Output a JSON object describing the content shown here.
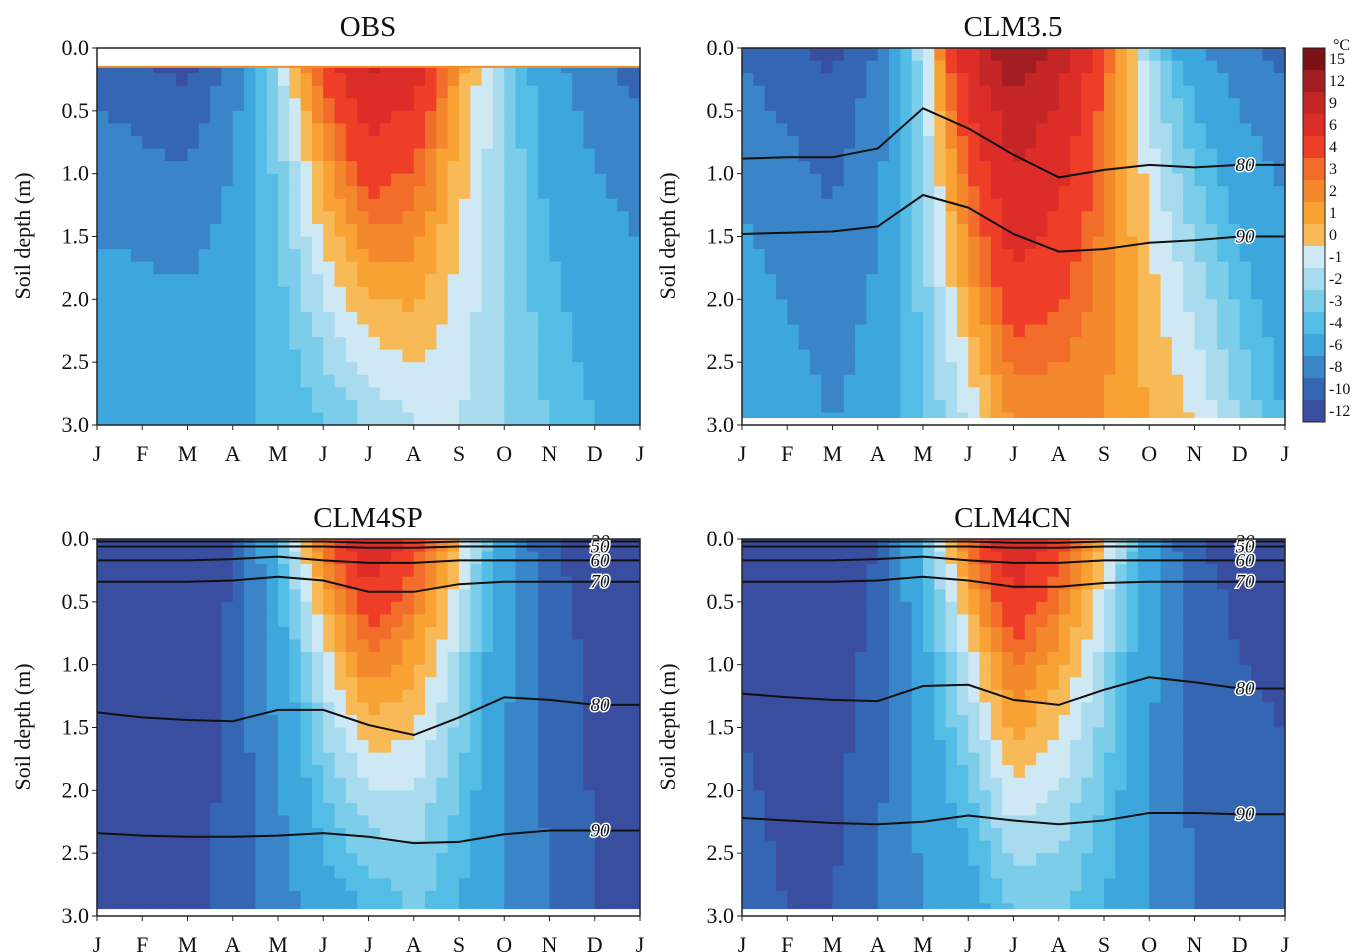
{
  "chart_data": {
    "type": "heatmap",
    "shared": {
      "x_tick_labels": [
        "J",
        "F",
        "M",
        "A",
        "M",
        "J",
        "J",
        "A",
        "S",
        "O",
        "N",
        "D",
        "J"
      ],
      "y_tick_labels": [
        "0.0",
        "0.5",
        "1.0",
        "1.5",
        "2.0",
        "2.5",
        "3.0"
      ],
      "ylabel": "Soil depth (m)",
      "ylim": [
        3.0,
        0.0
      ],
      "xlim": [
        0,
        12
      ]
    },
    "colorbar": {
      "unit": "°C",
      "labels": [
        "15",
        "12",
        "9",
        "6",
        "4",
        "3",
        "2",
        "1",
        "0",
        "-1",
        "-2",
        "-3",
        "-4",
        "-6",
        "-8",
        "-10",
        "-12"
      ],
      "colors": [
        "#7a1216",
        "#a31e22",
        "#c42626",
        "#dd2d28",
        "#ee3e28",
        "#f26c2a",
        "#f4882d",
        "#f7a233",
        "#f8b957",
        "#cfe9f4",
        "#a9dbee",
        "#7ccde9",
        "#54bde6",
        "#3da7dd",
        "#3a85c8",
        "#3466b3",
        "#3a4ea0"
      ]
    },
    "panels": [
      {
        "title": "OBS",
        "surface_gap": 0.15,
        "bottom_gap": 0,
        "month_pos": [
          0,
          1,
          2,
          3,
          4,
          5,
          6,
          7,
          8,
          9,
          10,
          11,
          12
        ],
        "months": [
          {
            "s": -10,
            "b": -4
          },
          {
            "s": -11,
            "b": -4
          },
          {
            "s": -12,
            "b": -4
          },
          {
            "s": -8,
            "b": -4
          },
          {
            "s": -1,
            "b": -4
          },
          {
            "s": 6,
            "b": -3
          },
          {
            "s": 12,
            "b": -2
          },
          {
            "s": 9,
            "b": -1
          },
          {
            "s": 2,
            "b": -1
          },
          {
            "s": -2,
            "b": -2
          },
          {
            "s": -6,
            "b": -3
          },
          {
            "s": -8,
            "b": -4
          },
          {
            "s": -10,
            "b": -4
          }
        ],
        "contours": []
      },
      {
        "title": "CLM3.5",
        "surface_gap": 0,
        "bottom_gap": 0.06,
        "months": [
          {
            "s": -9,
            "b": -4
          },
          {
            "s": -10,
            "b": -5
          },
          {
            "s": -11,
            "b": -6
          },
          {
            "s": -8,
            "b": -5
          },
          {
            "s": -1,
            "b": -3
          },
          {
            "s": 9,
            "b": -1
          },
          {
            "s": 16,
            "b": 2
          },
          {
            "s": 12,
            "b": 2
          },
          {
            "s": 4,
            "b": 2
          },
          {
            "s": -2,
            "b": 1
          },
          {
            "s": -6,
            "b": 0
          },
          {
            "s": -8,
            "b": -2
          },
          {
            "s": -9,
            "b": -4
          }
        ],
        "contours": [
          {
            "label": "80",
            "depths": [
              0.88,
              0.87,
              0.87,
              0.8,
              0.48,
              0.64,
              0.85,
              1.03,
              0.97,
              0.93,
              0.95,
              0.93
            ]
          },
          {
            "label": "90",
            "depths": [
              1.48,
              1.47,
              1.46,
              1.42,
              1.17,
              1.27,
              1.48,
              1.62,
              1.6,
              1.55,
              1.53,
              1.5
            ]
          }
        ]
      },
      {
        "title": "CLM4SP",
        "surface_gap": 0,
        "bottom_gap": 0.06,
        "months": [
          {
            "s": -12,
            "b": -10
          },
          {
            "s": -13,
            "b": -11
          },
          {
            "s": -13,
            "b": -11
          },
          {
            "s": -10,
            "b": -9
          },
          {
            "s": -3,
            "b": -7
          },
          {
            "s": 4,
            "b": -5
          },
          {
            "s": 10,
            "b": -4
          },
          {
            "s": 6,
            "b": -3
          },
          {
            "s": 1,
            "b": -4
          },
          {
            "s": -5,
            "b": -6
          },
          {
            "s": -10,
            "b": -8
          },
          {
            "s": -11,
            "b": -10
          },
          {
            "s": -12,
            "b": -10
          }
        ],
        "contours": [
          {
            "label": "30",
            "depths": [
              0.02,
              0.02,
              0.02,
              0.02,
              0.02,
              0.02,
              0.03,
              0.03,
              0.02,
              0.02,
              0.02,
              0.02
            ]
          },
          {
            "label": "50",
            "depths": [
              0.06,
              0.06,
              0.06,
              0.06,
              0.06,
              0.06,
              0.07,
              0.07,
              0.06,
              0.06,
              0.06,
              0.06
            ]
          },
          {
            "label": "60",
            "depths": [
              0.17,
              0.17,
              0.17,
              0.16,
              0.14,
              0.17,
              0.19,
              0.19,
              0.17,
              0.17,
              0.17,
              0.17
            ]
          },
          {
            "label": "70",
            "depths": [
              0.34,
              0.34,
              0.34,
              0.33,
              0.3,
              0.33,
              0.42,
              0.42,
              0.36,
              0.34,
              0.34,
              0.34
            ]
          },
          {
            "label": "80",
            "depths": [
              1.38,
              1.42,
              1.44,
              1.45,
              1.36,
              1.36,
              1.48,
              1.56,
              1.42,
              1.26,
              1.28,
              1.32
            ]
          },
          {
            "label": "90",
            "depths": [
              2.34,
              2.36,
              2.37,
              2.37,
              2.36,
              2.34,
              2.37,
              2.42,
              2.41,
              2.35,
              2.32,
              2.32
            ]
          }
        ]
      },
      {
        "title": "CLM4CN",
        "surface_gap": 0,
        "bottom_gap": 0.06,
        "months": [
          {
            "s": -12,
            "b": -9
          },
          {
            "s": -13,
            "b": -10
          },
          {
            "s": -13,
            "b": -10
          },
          {
            "s": -10,
            "b": -8
          },
          {
            "s": -3,
            "b": -6
          },
          {
            "s": 4,
            "b": -5
          },
          {
            "s": 10,
            "b": -3
          },
          {
            "s": 6,
            "b": -3
          },
          {
            "s": 1,
            "b": -4
          },
          {
            "s": -5,
            "b": -6
          },
          {
            "s": -10,
            "b": -8
          },
          {
            "s": -11,
            "b": -9
          },
          {
            "s": -12,
            "b": -9
          }
        ],
        "contours": [
          {
            "label": "30",
            "depths": [
              0.02,
              0.02,
              0.02,
              0.02,
              0.02,
              0.02,
              0.03,
              0.03,
              0.02,
              0.02,
              0.02,
              0.02
            ]
          },
          {
            "label": "50",
            "depths": [
              0.06,
              0.06,
              0.06,
              0.06,
              0.06,
              0.06,
              0.07,
              0.07,
              0.06,
              0.06,
              0.06,
              0.06
            ]
          },
          {
            "label": "60",
            "depths": [
              0.17,
              0.17,
              0.17,
              0.16,
              0.14,
              0.17,
              0.19,
              0.19,
              0.17,
              0.17,
              0.17,
              0.17
            ]
          },
          {
            "label": "70",
            "depths": [
              0.34,
              0.34,
              0.34,
              0.33,
              0.3,
              0.33,
              0.38,
              0.38,
              0.35,
              0.34,
              0.34,
              0.34
            ]
          },
          {
            "label": "80",
            "depths": [
              1.23,
              1.26,
              1.28,
              1.29,
              1.17,
              1.16,
              1.28,
              1.32,
              1.2,
              1.1,
              1.14,
              1.19
            ]
          },
          {
            "label": "90",
            "depths": [
              2.22,
              2.24,
              2.26,
              2.27,
              2.25,
              2.2,
              2.24,
              2.27,
              2.24,
              2.18,
              2.18,
              2.19
            ]
          }
        ]
      }
    ]
  }
}
